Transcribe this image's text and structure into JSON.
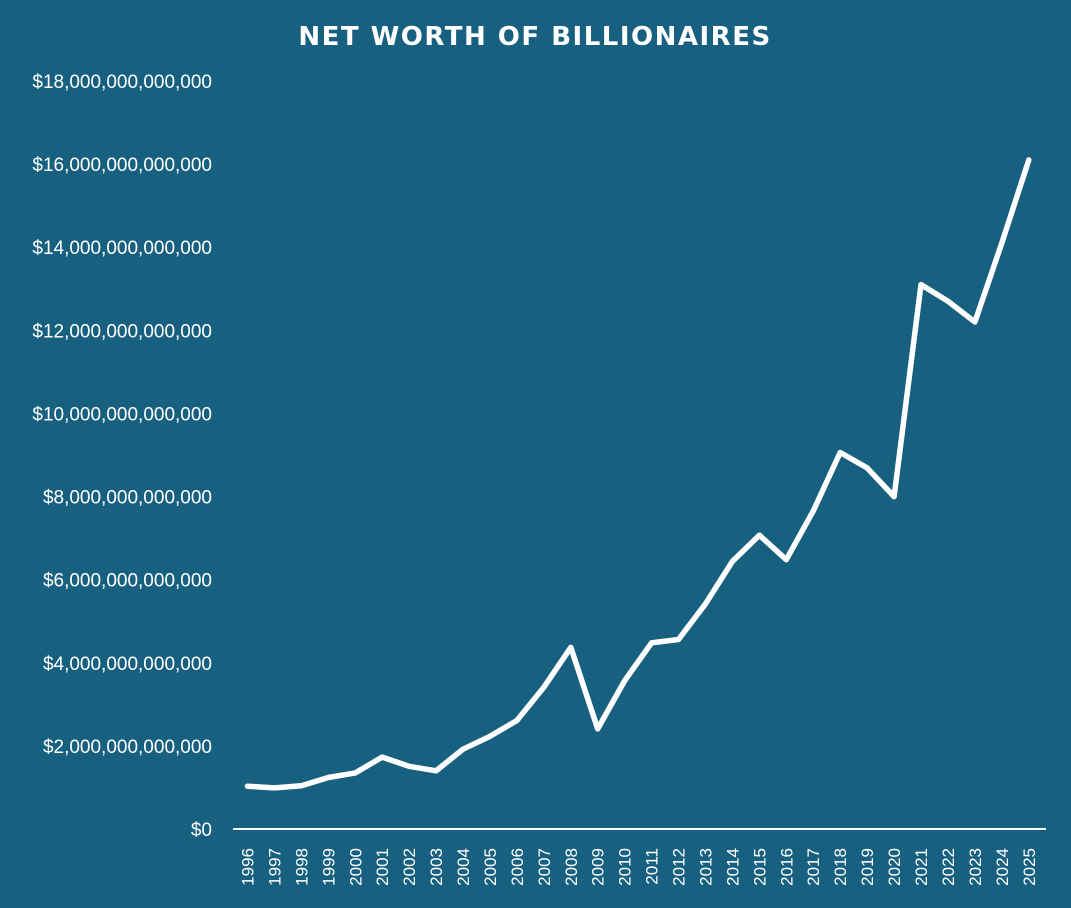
{
  "colors": {
    "background": "#17607f",
    "line": "#ffffff",
    "axis": "#ffffff"
  },
  "chart_data": {
    "type": "line",
    "title": "NET WORTH OF BILLIONAIRES",
    "xlabel": "",
    "ylabel": "",
    "ylim": [
      0,
      18000000000000
    ],
    "y_ticks": [
      0,
      2000000000000,
      4000000000000,
      6000000000000,
      8000000000000,
      10000000000000,
      12000000000000,
      14000000000000,
      16000000000000,
      18000000000000
    ],
    "y_tick_labels": [
      "$0",
      "$2,000,000,000,000",
      "$4,000,000,000,000",
      "$6,000,000,000,000",
      "$8,000,000,000,000",
      "$10,000,000,000,000",
      "$12,000,000,000,000",
      "$14,000,000,000,000",
      "$16,000,000,000,000",
      "$18,000,000,000,000"
    ],
    "grid": false,
    "legend": "none",
    "drop_lines": true,
    "categories": [
      "1996",
      "1997",
      "1998",
      "1999",
      "2000",
      "2001",
      "2002",
      "2003",
      "2004",
      "2005",
      "2006",
      "2007",
      "2008",
      "2009",
      "2010",
      "2011",
      "2012",
      "2013",
      "2014",
      "2015",
      "2016",
      "2017",
      "2018",
      "2019",
      "2020",
      "2021",
      "2022",
      "2023",
      "2024",
      "2025"
    ],
    "values": [
      1030000000000,
      990000000000,
      1040000000000,
      1240000000000,
      1350000000000,
      1730000000000,
      1510000000000,
      1400000000000,
      1920000000000,
      2230000000000,
      2610000000000,
      3410000000000,
      4370000000000,
      2410000000000,
      3570000000000,
      4480000000000,
      4560000000000,
      5420000000000,
      6440000000000,
      7070000000000,
      6480000000000,
      7650000000000,
      9060000000000,
      8690000000000,
      8000000000000,
      13100000000000,
      12700000000000,
      12200000000000,
      14100000000000,
      16100000000000
    ]
  }
}
